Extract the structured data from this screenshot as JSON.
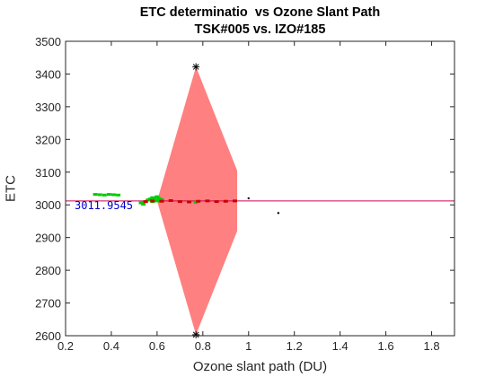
{
  "chart_data": {
    "type": "scatter",
    "title_line1": "ETC determinatio  vs Ozone Slant Path",
    "title_line2": "TSK#005 vs. IZO#185",
    "xlabel": "Ozone slant path (DU)",
    "ylabel": "ETC",
    "xlim": [
      0.2,
      1.9
    ],
    "ylim": [
      2600,
      3500
    ],
    "xticks": [
      0.2,
      0.4,
      0.6,
      0.8,
      1.0,
      1.2,
      1.4,
      1.6,
      1.8
    ],
    "xtick_labels": [
      "0.2",
      "0.4",
      "0.6",
      "0.8",
      "1",
      "1.2",
      "1.4",
      "1.6",
      "1.8"
    ],
    "yticks": [
      2600,
      2700,
      2800,
      2900,
      3000,
      3100,
      3200,
      3300,
      3400,
      3500
    ],
    "ytick_labels": [
      "2600",
      "2700",
      "2800",
      "2900",
      "3000",
      "3100",
      "3200",
      "3300",
      "3400",
      "3500"
    ],
    "grid": false,
    "etc_value_label": "3011.9545",
    "reference_line": {
      "y": 3011.95,
      "color": "#cc0055"
    },
    "confidence_band": {
      "color": "#ff8080",
      "points": [
        [
          0.6,
          3011.95
        ],
        [
          0.77,
          3422
        ],
        [
          0.95,
          3105
        ],
        [
          0.95,
          2920
        ],
        [
          0.77,
          2603
        ]
      ]
    },
    "extreme_markers": [
      [
        0.77,
        3422
      ],
      [
        0.77,
        2603
      ]
    ],
    "series": [
      {
        "color": "#00cc00",
        "points": [
          [
            0.33,
            3032
          ],
          [
            0.35,
            3031
          ],
          [
            0.37,
            3030
          ],
          [
            0.39,
            3032
          ],
          [
            0.41,
            3031
          ],
          [
            0.43,
            3030
          ],
          [
            0.53,
            3006
          ],
          [
            0.54,
            3002
          ],
          [
            0.55,
            3010
          ],
          [
            0.56,
            3015
          ],
          [
            0.57,
            3018
          ],
          [
            0.58,
            3022
          ],
          [
            0.59,
            3020
          ],
          [
            0.6,
            3025
          ],
          [
            0.61,
            3019
          ],
          [
            0.62,
            3016
          ],
          [
            0.6,
            3012
          ],
          [
            0.58,
            3010
          ],
          [
            0.77,
            3008
          ]
        ]
      },
      {
        "color": "#cc0000",
        "points": [
          [
            0.55,
            3010
          ],
          [
            0.58,
            3012
          ],
          [
            0.62,
            3011
          ],
          [
            0.66,
            3013
          ],
          [
            0.7,
            3010
          ],
          [
            0.74,
            3009
          ],
          [
            0.78,
            3011
          ],
          [
            0.82,
            3012
          ],
          [
            0.86,
            3010
          ],
          [
            0.9,
            3011
          ],
          [
            0.94,
            3012
          ]
        ]
      },
      {
        "color": "#000000",
        "points": [
          [
            1.0,
            3020
          ],
          [
            1.13,
            2975
          ]
        ]
      }
    ]
  }
}
